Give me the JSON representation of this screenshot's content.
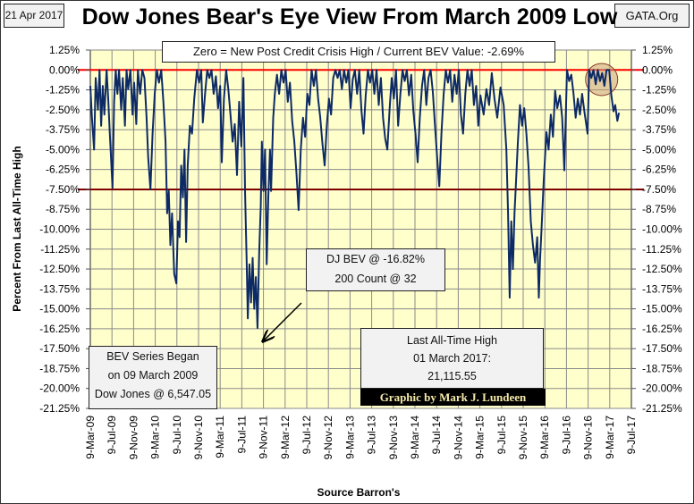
{
  "header": {
    "date": "21 Apr 2017",
    "source_tag": "GATA.Org"
  },
  "chart_data": {
    "type": "line",
    "title": "Dow Jones Bear's Eye View From March 2009 Low",
    "subtitle": "Zero = New Post Credit Crisis High / Current BEV Value:  -2.69%",
    "xlabel": "Source Barron's",
    "ylabel": "Percent From Last All-Time High",
    "x_unit": "months since 9-Mar-09",
    "xlim": [
      0,
      100
    ],
    "ylim": [
      -21.25,
      1.25
    ],
    "x_tick_labels": [
      "9-Mar-09",
      "9-Jul-09",
      "9-Nov-09",
      "9-Mar-10",
      "9-Jul-10",
      "9-Nov-10",
      "9-Mar-11",
      "9-Jul-11",
      "9-Nov-11",
      "9-Mar-12",
      "9-Jul-12",
      "9-Nov-12",
      "9-Mar-13",
      "9-Jul-13",
      "9-Nov-13",
      "9-Mar-14",
      "9-Jul-14",
      "9-Nov-14",
      "9-Mar-15",
      "9-Jul-15",
      "9-Nov-15",
      "9-Mar-16",
      "9-Jul-16",
      "9-Nov-16",
      "9-Mar-17",
      "9-Jul-17"
    ],
    "y_tick_labels": [
      "1.25%",
      "0.00%",
      "-1.25%",
      "-2.50%",
      "-3.75%",
      "-5.00%",
      "-6.25%",
      "-7.50%",
      "-8.75%",
      "-10.00%",
      "-11.25%",
      "-12.50%",
      "-13.75%",
      "-15.00%",
      "-16.25%",
      "-17.50%",
      "-18.75%",
      "-20.00%",
      "-21.25%"
    ],
    "reference_lines": [
      {
        "value": 0,
        "color": "#ff0000"
      },
      {
        "value": -7.5,
        "color": "#800000"
      }
    ],
    "grid": true,
    "series": [
      {
        "name": "Dow Jones BEV",
        "color": "#0d2a66",
        "points": [
          [
            0,
            -1
          ],
          [
            0.3,
            -3
          ],
          [
            0.7,
            -5
          ],
          [
            1,
            -0.5
          ],
          [
            1.4,
            -2.5
          ],
          [
            1.7,
            0
          ],
          [
            2,
            -3.5
          ],
          [
            2.3,
            -1
          ],
          [
            2.6,
            -2.8
          ],
          [
            3,
            0
          ],
          [
            3.3,
            -1.8
          ],
          [
            3.6,
            -4
          ],
          [
            4.1,
            -7.4
          ],
          [
            4.4,
            -2
          ],
          [
            4.7,
            0
          ],
          [
            5,
            -1.5
          ],
          [
            5.3,
            0
          ],
          [
            5.7,
            -2.5
          ],
          [
            6,
            -0.5
          ],
          [
            6.4,
            -3.5
          ],
          [
            6.7,
            0
          ],
          [
            7,
            -1.2
          ],
          [
            7.4,
            0
          ],
          [
            7.8,
            -2.8
          ],
          [
            8.1,
            -0.8
          ],
          [
            8.5,
            -3.4
          ],
          [
            8.8,
            0
          ],
          [
            9.2,
            -1.5
          ],
          [
            9.6,
            0
          ],
          [
            10,
            -0.5
          ],
          [
            10.4,
            -3
          ],
          [
            10.7,
            -5.5
          ],
          [
            11.1,
            -7.5
          ],
          [
            11.5,
            -4
          ],
          [
            11.9,
            -1.5
          ],
          [
            12.3,
            0
          ],
          [
            12.7,
            -0.8
          ],
          [
            13.1,
            0
          ],
          [
            13.5,
            -2
          ],
          [
            13.9,
            -4.5
          ],
          [
            14.2,
            -9
          ],
          [
            14.5,
            -7.6
          ],
          [
            14.8,
            -11
          ],
          [
            15.1,
            -9
          ],
          [
            15.5,
            -12.8
          ],
          [
            15.9,
            -13.4
          ],
          [
            16.2,
            -9.5
          ],
          [
            16.5,
            -10.5
          ],
          [
            16.8,
            -6
          ],
          [
            17.1,
            -8
          ],
          [
            17.4,
            -5
          ],
          [
            17.7,
            -10.8
          ],
          [
            18,
            -6
          ],
          [
            18.4,
            -3.5
          ],
          [
            18.8,
            -4
          ],
          [
            19.2,
            -1.8
          ],
          [
            19.7,
            0
          ],
          [
            20.1,
            -0.8
          ],
          [
            20.5,
            0
          ],
          [
            20.8,
            -3.3
          ],
          [
            21.2,
            -1.5
          ],
          [
            21.6,
            0
          ],
          [
            22,
            -0.5
          ],
          [
            22.4,
            0
          ],
          [
            22.8,
            -1.5
          ],
          [
            23.2,
            -0.4
          ],
          [
            23.6,
            -2.4
          ],
          [
            24,
            -1
          ],
          [
            24.3,
            -5.8
          ],
          [
            24.7,
            -1.8
          ],
          [
            25.1,
            0
          ],
          [
            25.5,
            -1.2
          ],
          [
            25.9,
            -2.8
          ],
          [
            26.3,
            -4.5
          ],
          [
            26.7,
            -3.4
          ],
          [
            27.1,
            -6.6
          ],
          [
            27.5,
            -2
          ],
          [
            27.9,
            -4.8
          ],
          [
            28.3,
            -0.5
          ],
          [
            28.6,
            -7.6
          ],
          [
            28.9,
            -12
          ],
          [
            29.1,
            -15.6
          ],
          [
            29.4,
            -12.2
          ],
          [
            29.7,
            -14.6
          ],
          [
            30,
            -11.8
          ],
          [
            30.3,
            -15
          ],
          [
            30.6,
            -13
          ],
          [
            30.9,
            -16.2
          ],
          [
            31.2,
            -11.5
          ],
          [
            31.5,
            -8.5
          ],
          [
            31.7,
            -4.5
          ],
          [
            32,
            -7.6
          ],
          [
            32.3,
            -5
          ],
          [
            32.6,
            -12.2
          ],
          [
            32.9,
            -8
          ],
          [
            33.2,
            -5
          ],
          [
            33.4,
            -7.6
          ],
          [
            33.8,
            -3
          ],
          [
            34.1,
            -1.5
          ],
          [
            34.5,
            -0.3
          ],
          [
            34.9,
            -1.5
          ],
          [
            35.3,
            0
          ],
          [
            35.7,
            -0.8
          ],
          [
            36.1,
            0
          ],
          [
            36.5,
            -2
          ],
          [
            36.9,
            -0.8
          ],
          [
            37.3,
            -3.2
          ],
          [
            37.7,
            -4.5
          ],
          [
            38.1,
            -6.5
          ],
          [
            38.5,
            -8.8
          ],
          [
            38.9,
            -5
          ],
          [
            39.3,
            -3
          ],
          [
            39.7,
            -4.2
          ],
          [
            40.1,
            -1.5
          ],
          [
            40.5,
            -2.2
          ],
          [
            40.9,
            0
          ],
          [
            41.3,
            -1
          ],
          [
            41.7,
            0
          ],
          [
            42.1,
            -1.8
          ],
          [
            42.5,
            -3
          ],
          [
            42.9,
            -4.6
          ],
          [
            43.3,
            -6
          ],
          [
            43.7,
            -3.5
          ],
          [
            44.1,
            -1.8
          ],
          [
            44.5,
            -2.8
          ],
          [
            44.9,
            -0.5
          ],
          [
            45.3,
            0
          ],
          [
            45.7,
            -0.5
          ],
          [
            46.1,
            0
          ],
          [
            46.5,
            -1.2
          ],
          [
            46.9,
            0
          ],
          [
            47.3,
            -0.8
          ],
          [
            47.7,
            0
          ],
          [
            48.1,
            -2.4
          ],
          [
            48.5,
            -0.6
          ],
          [
            48.9,
            0
          ],
          [
            49.3,
            -1.5
          ],
          [
            49.7,
            0
          ],
          [
            50.1,
            -2.5
          ],
          [
            50.5,
            -4
          ],
          [
            50.9,
            -1.6
          ],
          [
            51.3,
            0
          ],
          [
            51.7,
            -0.8
          ],
          [
            52.1,
            0
          ],
          [
            52.5,
            -1.5
          ],
          [
            52.9,
            0
          ],
          [
            53.3,
            -2.2
          ],
          [
            53.7,
            -0.5
          ],
          [
            54.1,
            -3
          ],
          [
            54.5,
            -4.3
          ],
          [
            54.9,
            -5
          ],
          [
            55.3,
            -2.5
          ],
          [
            55.7,
            -0.5
          ],
          [
            56.1,
            -1.8
          ],
          [
            56.5,
            0
          ],
          [
            56.9,
            -3.5
          ],
          [
            57.3,
            -1.5
          ],
          [
            57.7,
            0
          ],
          [
            58.1,
            -0.7
          ],
          [
            58.5,
            0
          ],
          [
            58.9,
            -1.6
          ],
          [
            59.3,
            -0.3
          ],
          [
            59.7,
            -2.6
          ],
          [
            60.1,
            -4
          ],
          [
            60.5,
            -5.8
          ],
          [
            60.9,
            -3
          ],
          [
            61.3,
            -1
          ],
          [
            61.7,
            0
          ],
          [
            62.1,
            -2.2
          ],
          [
            62.5,
            -0.5
          ],
          [
            62.9,
            0
          ],
          [
            63.3,
            -1.4
          ],
          [
            63.7,
            -3.5
          ],
          [
            64.1,
            -5.5
          ],
          [
            64.5,
            -7.3
          ],
          [
            64.9,
            -4
          ],
          [
            65.3,
            -1.5
          ],
          [
            65.7,
            0
          ],
          [
            66.1,
            -0.8
          ],
          [
            66.5,
            0
          ],
          [
            66.9,
            -2
          ],
          [
            67.3,
            -0.3
          ],
          [
            67.7,
            -1.5
          ],
          [
            68.1,
            0
          ],
          [
            68.5,
            -2.8
          ],
          [
            68.9,
            -4
          ],
          [
            69.3,
            -1.5
          ],
          [
            69.7,
            0
          ],
          [
            70.1,
            -1
          ],
          [
            70.5,
            0
          ],
          [
            70.9,
            -2.2
          ],
          [
            71.3,
            -1
          ],
          [
            71.7,
            -3.5
          ],
          [
            72.1,
            -1.6
          ],
          [
            72.7,
            -2.8
          ],
          [
            73.2,
            -1.2
          ],
          [
            73.7,
            -2.2
          ],
          [
            74.2,
            -0.2
          ],
          [
            74.7,
            -1.8
          ],
          [
            75.2,
            -3
          ],
          [
            75.8,
            -1.1
          ],
          [
            76.4,
            -2.2
          ],
          [
            76.9,
            -5
          ],
          [
            77.2,
            -9
          ],
          [
            77.5,
            -14.3
          ],
          [
            77.8,
            -9.5
          ],
          [
            78.1,
            -12.5
          ],
          [
            78.4,
            -9
          ],
          [
            78.7,
            -6.9
          ],
          [
            79,
            -4.6
          ],
          [
            79.4,
            -2.2
          ],
          [
            79.8,
            -3.5
          ],
          [
            80.2,
            -2.4
          ],
          [
            80.6,
            -4
          ],
          [
            81,
            -6.1
          ],
          [
            81.4,
            -9.5
          ],
          [
            81.8,
            -11
          ],
          [
            82.2,
            -12.1
          ],
          [
            82.6,
            -10.5
          ],
          [
            82.9,
            -14.3
          ],
          [
            83.1,
            -12
          ],
          [
            83.4,
            -9.9
          ],
          [
            83.8,
            -6.9
          ],
          [
            84.3,
            -3.9
          ],
          [
            84.7,
            -5
          ],
          [
            85.1,
            -2.8
          ],
          [
            85.5,
            -4.2
          ],
          [
            85.9,
            -1.3
          ],
          [
            86.3,
            -2.4
          ],
          [
            86.8,
            -1.6
          ],
          [
            87.2,
            -3
          ],
          [
            87.6,
            -6.3
          ],
          [
            88.1,
            0
          ],
          [
            88.5,
            -0.7
          ],
          [
            88.9,
            -0.3
          ],
          [
            89.3,
            -1.5
          ],
          [
            89.7,
            -3
          ],
          [
            90.1,
            -1.8
          ],
          [
            90.5,
            -2.8
          ],
          [
            90.9,
            -1.5
          ],
          [
            91.3,
            -2.6
          ],
          [
            91.9,
            -4
          ],
          [
            92.2,
            0
          ],
          [
            92.6,
            -0.5
          ],
          [
            93,
            0
          ],
          [
            93.4,
            -0.9
          ],
          [
            93.8,
            0
          ],
          [
            94.2,
            -0.7
          ],
          [
            94.6,
            -0.2
          ],
          [
            95,
            -1
          ],
          [
            95.4,
            0
          ],
          [
            95.9,
            0
          ],
          [
            96.3,
            -1.6
          ],
          [
            96.7,
            -2.6
          ],
          [
            97,
            -2.2
          ],
          [
            97.4,
            -3.2
          ],
          [
            97.7,
            -2.69
          ]
        ]
      }
    ],
    "highlight": {
      "label": "circle around recent highs",
      "x": 94.5,
      "y": -0.6
    },
    "annotations": {
      "bev_low": {
        "line1": "DJ BEV @ -16.82%",
        "line2": "200 Count @ 32",
        "arrow_to": [
          30.9,
          -16.82
        ]
      },
      "series_start": {
        "line1": "BEV Series Began",
        "line2": "on 09 March 2009",
        "line3": "Dow Jones @ 6,547.05"
      },
      "last_high": {
        "line1": "Last All-Time High",
        "line2": "01 March 2017:",
        "line3": "21,115.55"
      },
      "credit": "Graphic by Mark J. Lundeen"
    }
  }
}
